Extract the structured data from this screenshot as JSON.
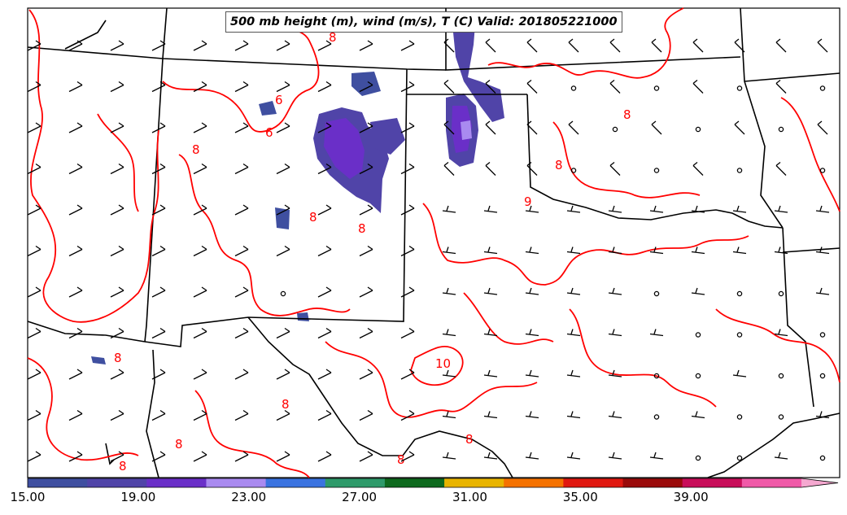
{
  "title": "500 mb height (m), wind (m/s), T (C) Valid: 201805221000",
  "colorbar": {
    "tick_labels": [
      "15.00",
      "19.00",
      "23.00",
      "27.00",
      "31.00",
      "35.00",
      "39.00"
    ],
    "min": 15,
    "max": 43,
    "colors": [
      "#3f4fa0",
      "#5044a8",
      "#6a2fc8",
      "#a98af0",
      "#3a73e0",
      "#2e9a6a",
      "#0e6a1e",
      "#e8b400",
      "#f57200",
      "#e01810",
      "#9a0a0a",
      "#c80e5a",
      "#f05aa8"
    ],
    "extend_color": "#f5a8d0"
  },
  "contour_labels": [
    "6",
    "6",
    "8",
    "8",
    "8",
    "8",
    "8",
    "8",
    "9",
    "8",
    "10",
    "8",
    "8",
    "8",
    "8",
    "8"
  ],
  "legend_colors": {
    "contour": "#ff0000",
    "border": "#000000"
  }
}
